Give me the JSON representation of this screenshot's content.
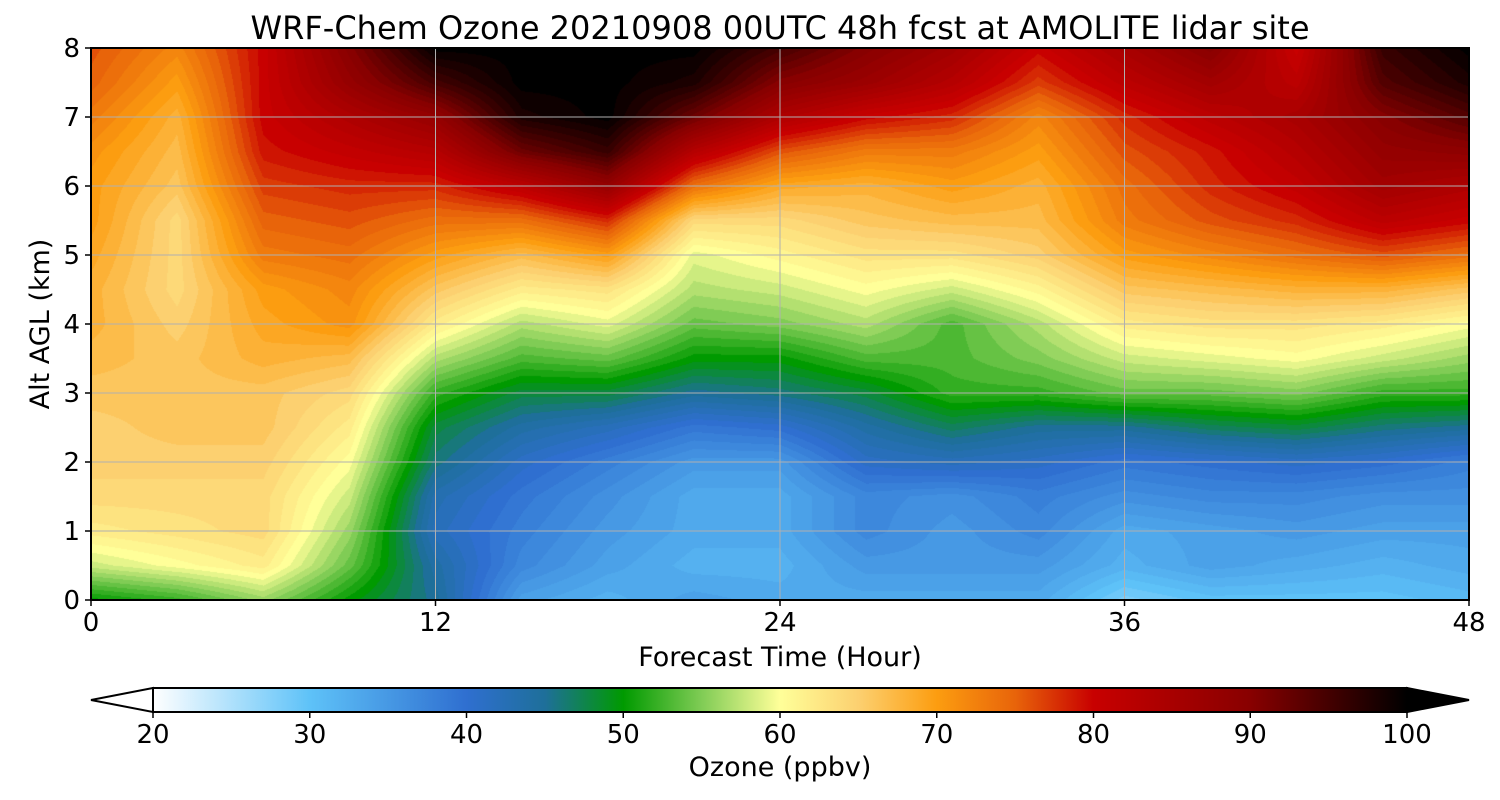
{
  "chart_data": {
    "type": "heatmap",
    "title": "WRF-Chem Ozone  20210908 00UTC 48h fcst at AMOLITE lidar site",
    "xlabel": "Forecast Time (Hour)",
    "ylabel": "Alt AGL (km)",
    "xlim": [
      0,
      48
    ],
    "ylim": [
      0,
      8
    ],
    "x_ticks": [
      "0",
      "12",
      "24",
      "36",
      "48"
    ],
    "y_ticks": [
      "0",
      "1",
      "2",
      "3",
      "4",
      "5",
      "6",
      "7",
      "8"
    ],
    "grid": true,
    "x": [
      0,
      3,
      6,
      9,
      12,
      15,
      18,
      21,
      24,
      27,
      30,
      33,
      36,
      39,
      42,
      45,
      48
    ],
    "y": [
      0,
      0.5,
      1,
      1.5,
      2,
      2.5,
      3,
      3.5,
      4,
      4.5,
      5,
      5.5,
      6,
      6.5,
      7,
      7.5,
      8
    ],
    "z": [
      [
        50,
        52,
        56,
        50,
        45,
        34,
        32,
        34,
        33,
        33,
        33,
        33,
        28,
        30,
        30,
        30,
        31
      ],
      [
        58,
        60,
        62,
        54,
        44,
        37,
        34,
        32,
        32,
        35,
        35,
        35,
        32,
        34,
        33,
        32,
        33
      ],
      [
        62,
        63,
        64,
        56,
        42,
        38,
        35,
        33,
        33,
        37,
        35,
        37,
        33,
        34,
        35,
        34,
        34
      ],
      [
        64,
        64,
        64,
        58,
        43,
        39,
        36,
        33,
        33,
        37,
        36,
        38,
        36,
        37,
        37,
        36,
        36
      ],
      [
        65,
        65,
        65,
        60,
        46,
        41,
        38,
        35,
        35,
        41,
        42,
        41,
        39,
        40,
        41,
        40,
        38
      ],
      [
        65,
        66,
        66,
        62,
        48,
        44,
        42,
        39,
        40,
        44,
        47,
        45,
        45,
        47,
        48,
        46,
        45
      ],
      [
        66,
        66,
        66,
        64,
        52,
        48,
        48,
        45,
        46,
        48,
        52,
        52,
        54,
        54,
        55,
        52,
        52
      ],
      [
        67,
        66,
        68,
        67,
        57,
        53,
        54,
        50,
        50,
        53,
        53,
        55,
        58,
        59,
        60,
        58,
        56
      ],
      [
        68,
        65,
        69,
        71,
        62,
        57,
        59,
        54,
        55,
        57,
        53,
        57,
        62,
        63,
        63,
        62,
        60
      ],
      [
        68,
        64,
        70,
        72,
        66,
        62,
        63,
        57,
        58,
        60,
        58,
        61,
        66,
        67,
        68,
        68,
        66
      ],
      [
        69,
        64,
        73,
        74,
        70,
        67,
        70,
        59,
        61,
        63,
        63,
        65,
        70,
        72,
        74,
        76,
        74
      ],
      [
        70,
        64,
        75,
        76,
        74,
        74,
        78,
        64,
        64,
        66,
        67,
        67,
        73,
        76,
        78,
        82,
        80
      ],
      [
        70,
        66,
        77,
        78,
        78,
        82,
        88,
        74,
        69,
        68,
        70,
        68,
        74,
        78,
        81,
        86,
        84
      ],
      [
        71,
        67,
        79,
        81,
        83,
        92,
        96,
        83,
        76,
        73,
        73,
        70,
        76,
        79,
        83,
        88,
        89
      ],
      [
        73,
        68,
        80,
        84,
        88,
        98,
        100,
        92,
        84,
        80,
        78,
        72,
        78,
        82,
        85,
        90,
        94
      ],
      [
        75,
        70,
        80,
        88,
        95,
        100,
        100,
        98,
        90,
        87,
        83,
        77,
        82,
        86,
        82,
        94,
        98
      ],
      [
        76,
        72,
        80,
        90,
        100,
        100,
        100,
        100,
        95,
        90,
        86,
        80,
        85,
        90,
        80,
        96,
        100
      ]
    ],
    "colorbar": {
      "label": "Ozone  (ppbv)",
      "min": 20,
      "max": 100,
      "ticks": [
        "20",
        "30",
        "40",
        "50",
        "60",
        "70",
        "80",
        "90",
        "100"
      ],
      "extend": "both",
      "colormap_stops": [
        [
          20,
          "#ffffff"
        ],
        [
          30,
          "#5ec2f8"
        ],
        [
          40,
          "#2f6fd0"
        ],
        [
          45,
          "#1e6f9a"
        ],
        [
          50,
          "#009a00"
        ],
        [
          55,
          "#80cc55"
        ],
        [
          60,
          "#ffff99"
        ],
        [
          65,
          "#fcd070"
        ],
        [
          70,
          "#fc9d10"
        ],
        [
          75,
          "#e8640a"
        ],
        [
          80,
          "#c80000"
        ],
        [
          90,
          "#880000"
        ],
        [
          100,
          "#000000"
        ]
      ]
    }
  }
}
